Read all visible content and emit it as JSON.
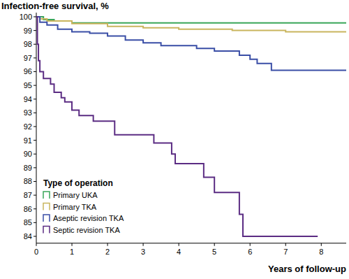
{
  "chart_data": {
    "type": "line",
    "line_style": "step",
    "y_label": "Infection-free survival, %",
    "x_label": "Years of follow-up",
    "legend_title": "Type of operation",
    "legend": "bottom-left",
    "grid": false,
    "xlim": [
      0,
      8.7
    ],
    "xticks": [
      0,
      1,
      2,
      3,
      4,
      5,
      6,
      7,
      8
    ],
    "ylim": [
      83.5,
      100.3
    ],
    "yticks": [
      84,
      85,
      86,
      87,
      88,
      89,
      90,
      91,
      92,
      93,
      94,
      95,
      96,
      97,
      98,
      99,
      100
    ],
    "series": [
      {
        "name": "Primary UKA",
        "color": "#3aa65a",
        "x": [
          0,
          0.2,
          0.5,
          1.0,
          8.7
        ],
        "values": [
          100,
          99.8,
          99.7,
          99.55,
          99.55
        ]
      },
      {
        "name": "Primary TKA",
        "color": "#c9b55e",
        "x": [
          0,
          0.1,
          0.3,
          1.0,
          2.0,
          3.0,
          4.0,
          5.5,
          7.0,
          8.7
        ],
        "values": [
          100,
          99.85,
          99.7,
          99.5,
          99.3,
          99.2,
          99.1,
          99.0,
          98.9,
          98.9
        ]
      },
      {
        "name": "Aseptic revision TKA",
        "color": "#3a4ea6",
        "x": [
          0,
          0.1,
          0.3,
          0.6,
          1.0,
          1.5,
          2.0,
          2.5,
          3.0,
          3.5,
          4.5,
          5.0,
          5.7,
          6.0,
          6.2,
          6.6,
          8.7
        ],
        "values": [
          100,
          99.6,
          99.4,
          99.1,
          98.9,
          98.8,
          98.6,
          98.3,
          98.1,
          97.9,
          97.7,
          97.5,
          97.2,
          96.9,
          96.6,
          96.1,
          96.1
        ]
      },
      {
        "name": "Septic revision TKA",
        "color": "#5b2c83",
        "x": [
          0,
          0.03,
          0.06,
          0.1,
          0.2,
          0.4,
          0.5,
          0.7,
          0.8,
          1.0,
          1.2,
          1.6,
          2.2,
          3.3,
          3.8,
          3.9,
          4.7,
          5.0,
          5.7,
          5.8,
          7.9
        ],
        "values": [
          100,
          98.0,
          96.8,
          96.0,
          95.5,
          95.1,
          94.5,
          94.1,
          93.8,
          93.2,
          92.8,
          92.4,
          91.4,
          90.8,
          90.0,
          89.3,
          88.3,
          87.2,
          85.6,
          84.0,
          84.0
        ]
      }
    ]
  }
}
